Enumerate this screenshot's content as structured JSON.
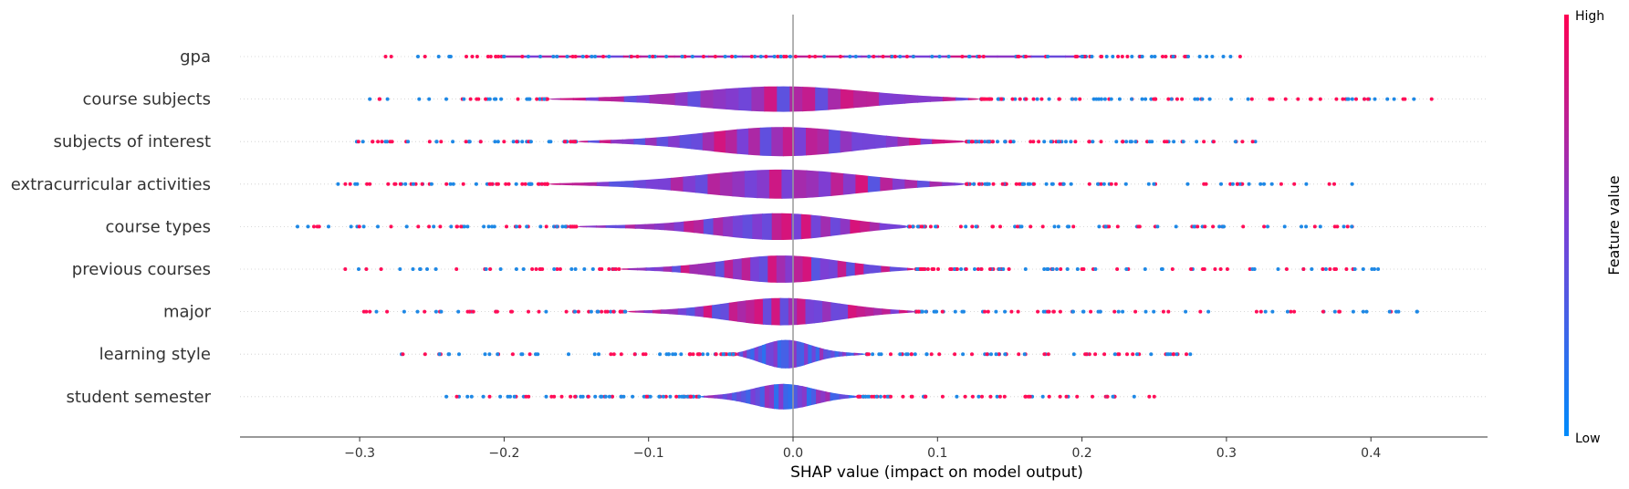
{
  "chart_data": {
    "type": "violin",
    "xlabel": "SHAP value (impact on model output)",
    "xlim": [
      -0.385,
      0.48
    ],
    "xticks": [
      -0.3,
      -0.2,
      -0.1,
      0.0,
      0.1,
      0.2,
      0.3,
      0.4
    ],
    "xtick_labels": [
      "−0.3",
      "−0.2",
      "−0.1",
      "0.0",
      "0.1",
      "0.2",
      "0.3",
      "0.4"
    ],
    "colorbar": {
      "label": "Feature value",
      "high_label": "High",
      "low_label": "Low",
      "high_color": "#ff0052",
      "low_color": "#008bfb"
    },
    "features": [
      {
        "name": "gpa",
        "min": -0.285,
        "max": 0.31,
        "q_low": -0.2,
        "q_high": 0.2,
        "half_width": 1.5
      },
      {
        "name": "course subjects",
        "min": -0.293,
        "max": 0.442,
        "q_low": -0.17,
        "q_high": 0.13,
        "half_width": 14
      },
      {
        "name": "subjects of interest",
        "min": -0.302,
        "max": 0.32,
        "q_low": -0.15,
        "q_high": 0.12,
        "half_width": 16
      },
      {
        "name": "extracurricular activities",
        "min": -0.315,
        "max": 0.387,
        "q_low": -0.17,
        "q_high": 0.12,
        "half_width": 16
      },
      {
        "name": "course types",
        "min": -0.343,
        "max": 0.387,
        "q_low": -0.15,
        "q_high": 0.08,
        "half_width": 15
      },
      {
        "name": "previous courses",
        "min": -0.31,
        "max": 0.405,
        "q_low": -0.12,
        "q_high": 0.085,
        "half_width": 15
      },
      {
        "name": "major",
        "min": -0.297,
        "max": 0.432,
        "q_low": -0.115,
        "q_high": 0.085,
        "half_width": 15
      },
      {
        "name": "learning style",
        "min": -0.271,
        "max": 0.275,
        "q_low": -0.04,
        "q_high": 0.05,
        "half_width": 16
      },
      {
        "name": "student semester",
        "min": -0.24,
        "max": 0.25,
        "q_low": -0.065,
        "q_high": 0.045,
        "half_width": 14
      }
    ]
  }
}
